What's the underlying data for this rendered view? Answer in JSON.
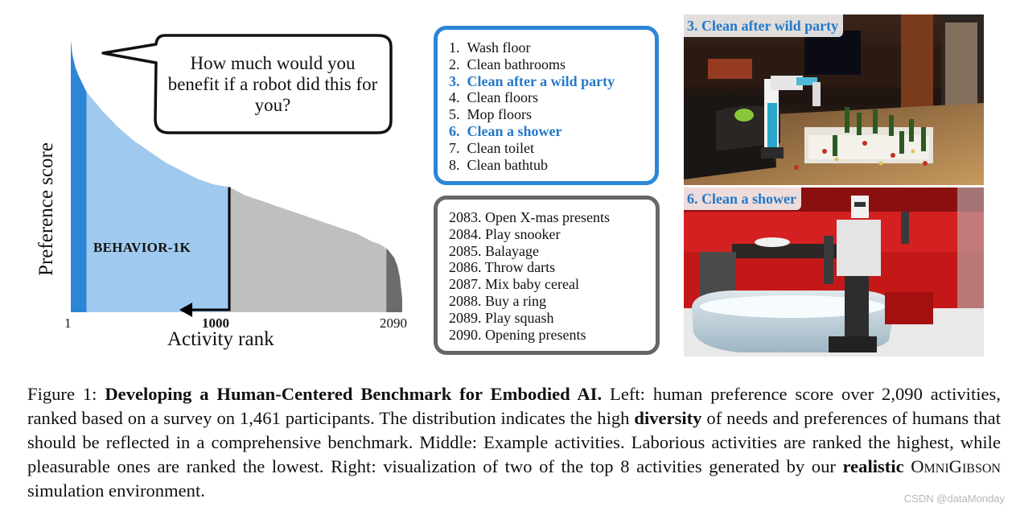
{
  "chart": {
    "y_label": "Preference score",
    "x_label": "Activity rank",
    "x_ticks": [
      "1",
      "1000",
      "2090"
    ],
    "region_label": "BEHAVIOR-1K",
    "speech_bubble": "How much would you benefit if a robot did this for you?",
    "colors": {
      "top_bar": "#2b86d8",
      "behavior": "#9fc9ee",
      "rest": "#bfbfbf",
      "tail": "#6b6b6b"
    }
  },
  "chart_data": {
    "type": "area",
    "xlabel": "Activity rank",
    "ylabel": "Preference score",
    "x_ticks": [
      "1",
      "1000",
      "2090"
    ],
    "x": [
      1,
      10,
      30,
      50,
      100,
      200,
      300,
      400,
      500,
      600,
      700,
      800,
      900,
      1000,
      1100,
      1200,
      1300,
      1400,
      1500,
      1600,
      1700,
      1800,
      1900,
      1950,
      2000,
      2040,
      2060,
      2075,
      2090
    ],
    "y": [
      1.0,
      0.95,
      0.9,
      0.87,
      0.81,
      0.74,
      0.68,
      0.63,
      0.59,
      0.55,
      0.52,
      0.49,
      0.47,
      0.46,
      0.43,
      0.41,
      0.39,
      0.37,
      0.35,
      0.33,
      0.31,
      0.29,
      0.26,
      0.25,
      0.23,
      0.2,
      0.17,
      0.13,
      0.05
    ],
    "xlim": [
      1,
      2090
    ],
    "ylim": [
      0,
      1
    ],
    "regions": [
      {
        "from": 1,
        "to": 100
      },
      {
        "from": 100,
        "to": 1000,
        "label": "BEHAVIOR-1K"
      },
      {
        "from": 1000,
        "to": 1990
      },
      {
        "from": 1990,
        "to": 2090
      }
    ]
  },
  "top_list": [
    {
      "text": "1.  Wash floor",
      "highlight": false
    },
    {
      "text": "2.  Clean bathrooms",
      "highlight": false
    },
    {
      "text": "3.  Clean after a wild party",
      "highlight": true
    },
    {
      "text": "4.  Clean floors",
      "highlight": false
    },
    {
      "text": "5.  Mop floors",
      "highlight": false
    },
    {
      "text": "6.  Clean a shower",
      "highlight": true
    },
    {
      "text": "7.  Clean toilet",
      "highlight": false
    },
    {
      "text": "8.  Clean bathtub",
      "highlight": false
    }
  ],
  "bottom_list": [
    "2083. Open X-mas presents",
    "2084. Play snooker",
    "2085. Balayage",
    "2086. Throw darts",
    "2087. Mix baby cereal",
    "2088. Buy a ring",
    "2089. Play squash",
    "2090. Opening presents"
  ],
  "images": {
    "party_label": "3. Clean after wild party",
    "shower_label": "6. Clean a shower"
  },
  "caption": {
    "prefix": "Figure 1: ",
    "title": "Developing a Human-Centered Benchmark for Embodied AI.",
    "part1": " Left: human preference score over 2,090 activities, ranked based on a survey on 1,461 participants. The distribution indicates the high ",
    "bold1": "diversity",
    "part2": " of needs and preferences of humans that should be reflected in a comprehensive benchmark. Middle: Example activities. Laborious activities are ranked the highest, while pleasurable ones are ranked the lowest. Right: visualization of two of the top 8 activities generated by our ",
    "bold2": "realistic",
    "part3": " ",
    "system_name": "OmniGibson",
    "part4": " simulation environment."
  },
  "watermark": "CSDN @dataMonday"
}
